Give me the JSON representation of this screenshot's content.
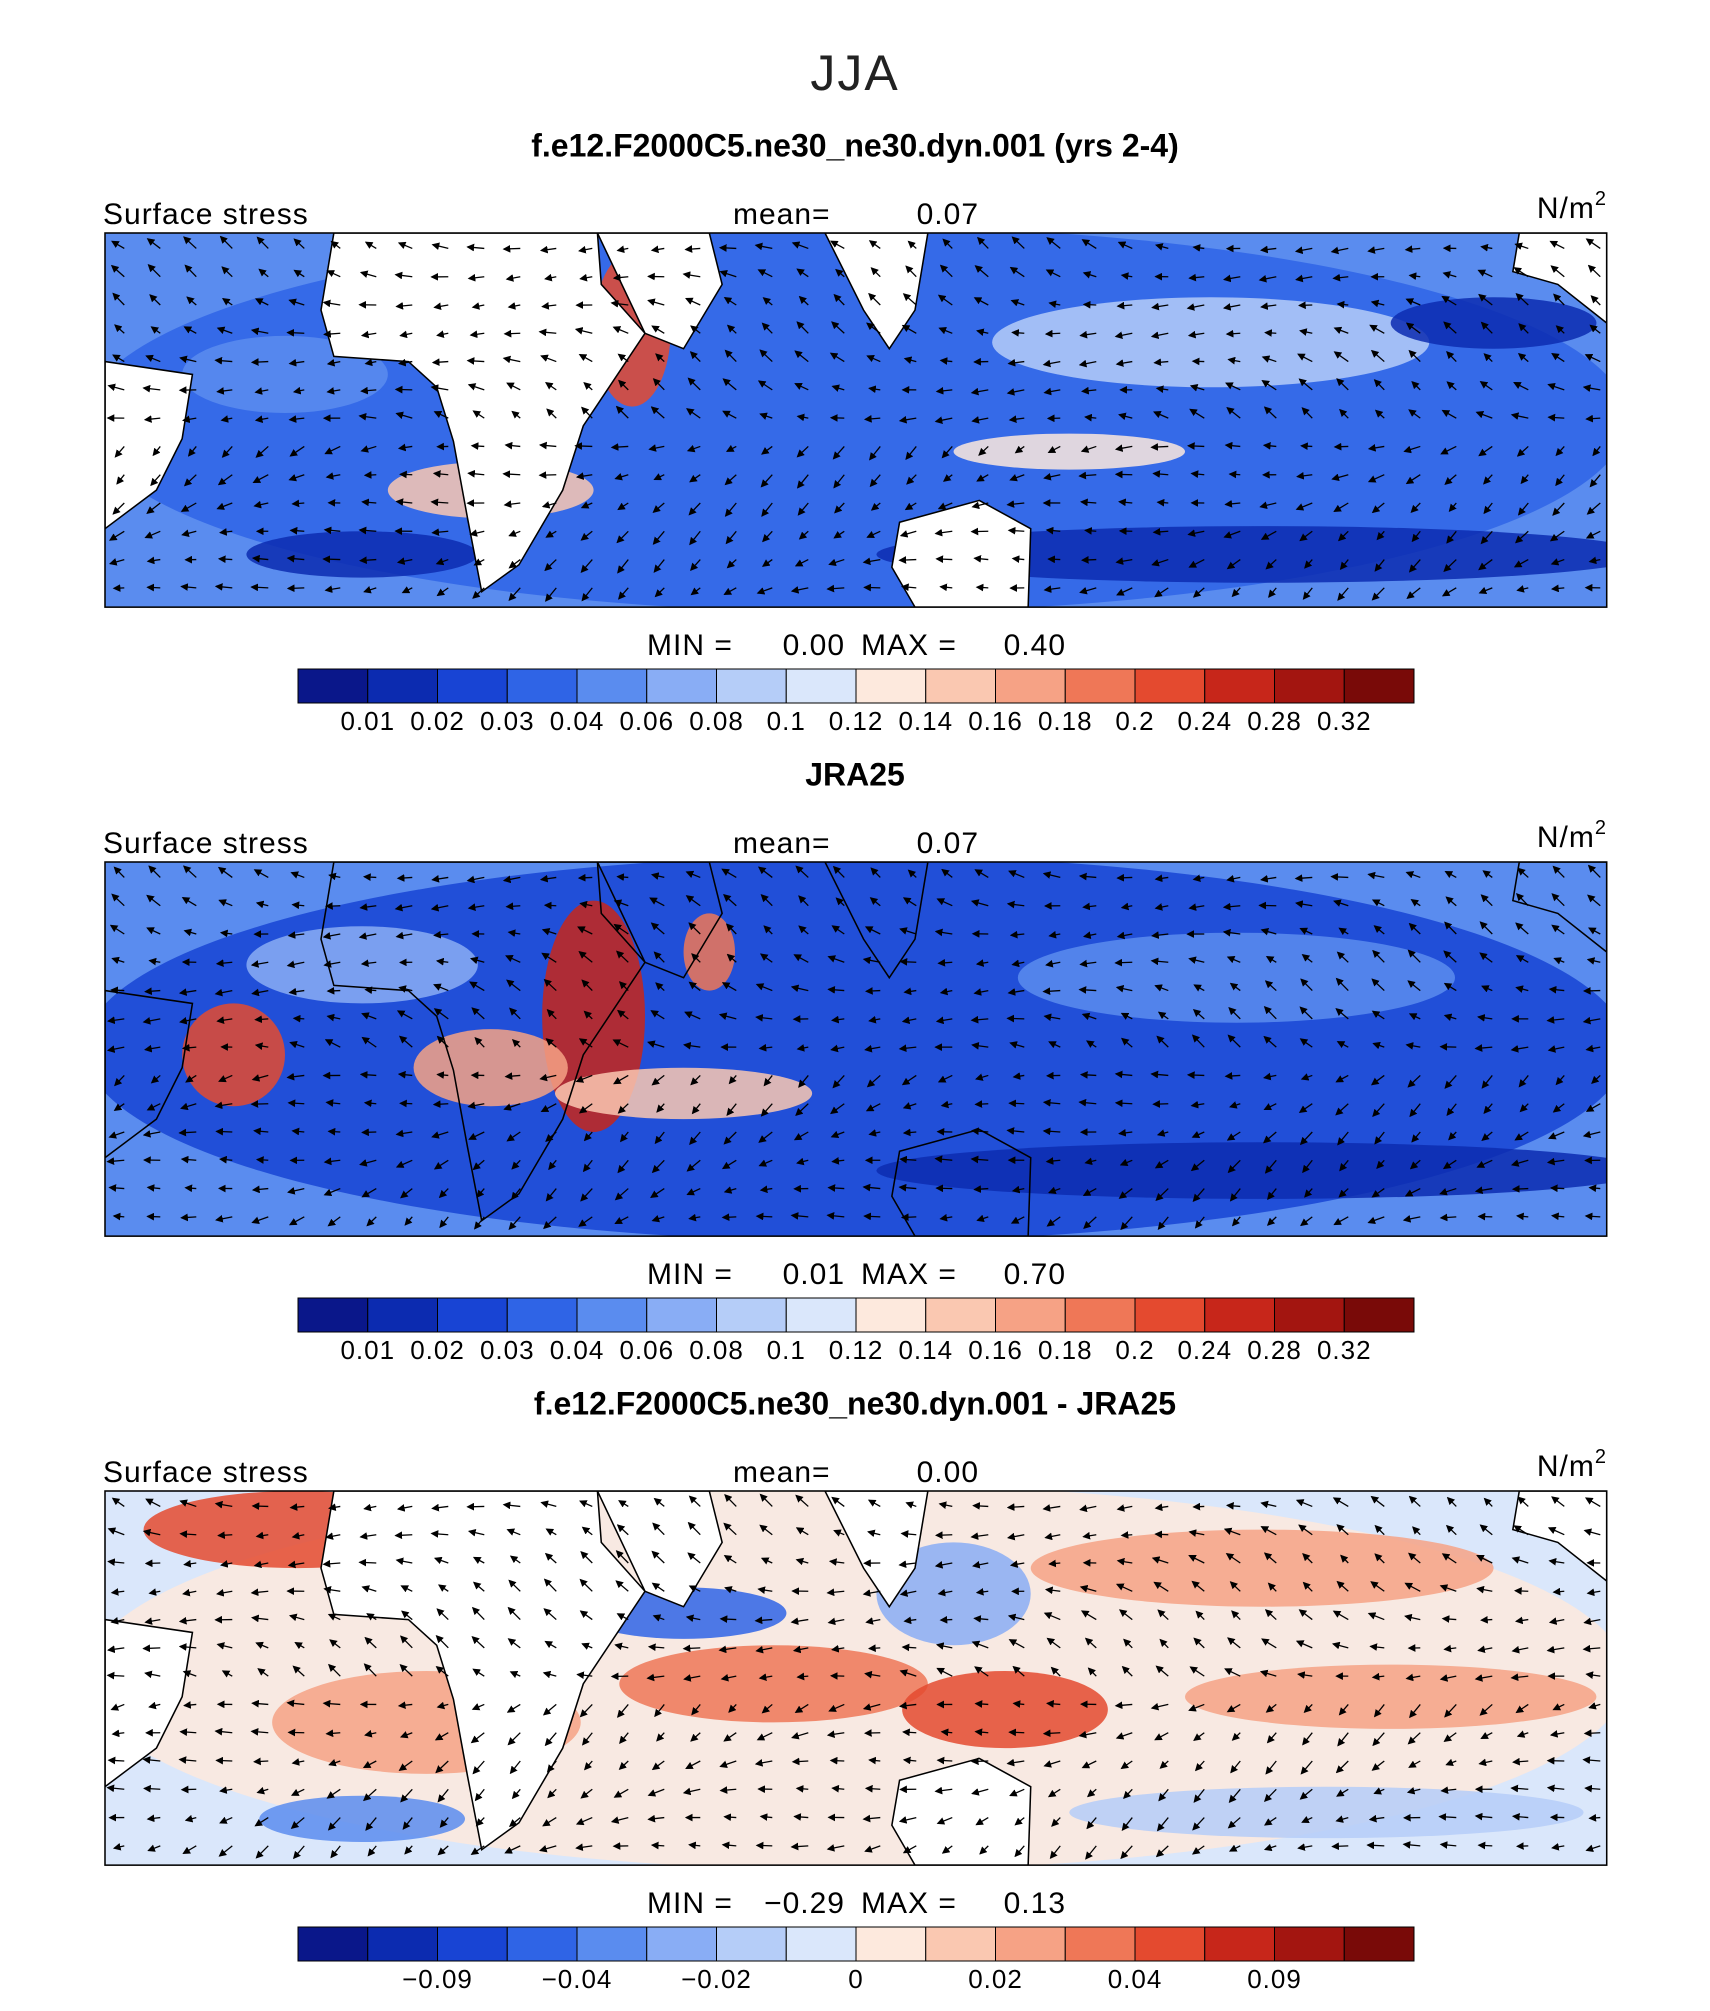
{
  "title": "JJA",
  "panels": [
    {
      "title": "f.e12.F2000C5.ne30_ne30.dyn.001 (yrs 2-4)",
      "label": "Surface stress",
      "mean_label": "mean=",
      "mean": "0.07",
      "units": "N/m",
      "units_power": "2",
      "min_label": "MIN =",
      "min": "0.00",
      "max_label": "MAX =",
      "max": "0.40",
      "colorbar": {
        "colors": [
          "#0a178a",
          "#0c2bb0",
          "#1844d4",
          "#2f64e6",
          "#5a8cef",
          "#89adf5",
          "#b5cdf8",
          "#dae7fb",
          "#fde9dd",
          "#fac8b1",
          "#f6a285",
          "#ef7757",
          "#e44a2f",
          "#c7261a",
          "#a31510",
          "#790a08"
        ],
        "levels": [
          0.01,
          0.02,
          0.03,
          0.04,
          0.06,
          0.08,
          0.1,
          0.12,
          0.14,
          0.16,
          0.18,
          0.2,
          0.24,
          0.28,
          0.32
        ]
      }
    },
    {
      "title": "JRA25",
      "label": "Surface stress",
      "mean_label": "mean=",
      "mean": "0.07",
      "units": "N/m",
      "units_power": "2",
      "min_label": "MIN =",
      "min": "0.01",
      "max_label": "MAX =",
      "max": "0.70",
      "colorbar": {
        "colors": [
          "#0a178a",
          "#0c2bb0",
          "#1844d4",
          "#2f64e6",
          "#5a8cef",
          "#89adf5",
          "#b5cdf8",
          "#dae7fb",
          "#fde9dd",
          "#fac8b1",
          "#f6a285",
          "#ef7757",
          "#e44a2f",
          "#c7261a",
          "#a31510",
          "#790a08"
        ],
        "levels": [
          0.01,
          0.02,
          0.03,
          0.04,
          0.06,
          0.08,
          0.1,
          0.12,
          0.14,
          0.16,
          0.18,
          0.2,
          0.24,
          0.28,
          0.32
        ]
      }
    },
    {
      "title": "f.e12.F2000C5.ne30_ne30.dyn.001 - JRA25",
      "label": "Surface stress",
      "mean_label": "mean=",
      "mean": "0.00",
      "units": "N/m",
      "units_power": "2",
      "min_label": "MIN =",
      "min": "−0.29",
      "max_label": "MAX =",
      "max": "0.13",
      "colorbar": {
        "colors": [
          "#0a178a",
          "#0c2bb0",
          "#1844d4",
          "#2f64e6",
          "#5a8cef",
          "#89adf5",
          "#b5cdf8",
          "#dae7fb",
          "#fde9dd",
          "#fac8b1",
          "#f6a285",
          "#ef7757",
          "#e44a2f",
          "#c7261a",
          "#a31510",
          "#790a08"
        ],
        "levels": [
          null,
          -0.09,
          null,
          -0.04,
          null,
          -0.02,
          null,
          0,
          null,
          0.02,
          null,
          0.04,
          null,
          0.09,
          null
        ]
      }
    }
  ]
}
